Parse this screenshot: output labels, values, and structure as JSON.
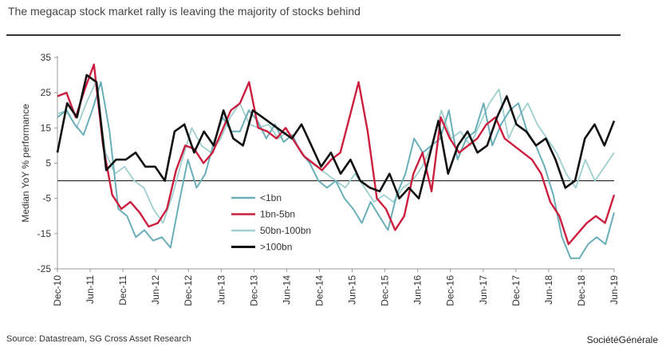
{
  "title": "The megacap stock market rally is leaving the majority of stocks behind",
  "source": "Source: Datastream, SG Cross Asset Research",
  "brand": "SociétéGénérale",
  "colors": {
    "lt1": "#6aaeb8",
    "r15": "#cc1f3f",
    "m50": "#9fcfcf",
    "g100": "#111111"
  },
  "chart_data": {
    "type": "line",
    "title": "The megacap stock market rally is leaving the majority of stocks behind",
    "ylabel": "Median YoY % performance",
    "xlabel": "",
    "ylim": [
      -25,
      35
    ],
    "yticks": [
      35,
      25,
      15,
      5,
      -5,
      -15,
      -25
    ],
    "xticks": [
      "Dec-10",
      "Jun-11",
      "Dec-11",
      "Jun-12",
      "Dec-12",
      "Jun-13",
      "Dec-13",
      "Jun-14",
      "Dec-14",
      "Jun-15",
      "Dec-15",
      "Jun-16",
      "Dec-16",
      "Jun-17",
      "Dec-17",
      "Jun-18",
      "Dec-18",
      "Jun-19"
    ],
    "legend_position": "center-left",
    "series": [
      {
        "name": "<1bn",
        "color_key": "lt1",
        "values": [
          18,
          20,
          16,
          13,
          20,
          28,
          14,
          -8,
          -10,
          -16,
          -14,
          -17,
          -16,
          -19,
          -6,
          6,
          -2,
          2,
          11,
          18,
          14,
          14,
          20,
          17,
          12,
          16,
          11,
          13,
          8,
          5,
          0,
          -2,
          0,
          -5,
          -8,
          -12,
          -6,
          -10,
          -14,
          -4,
          2,
          12,
          8,
          10,
          12,
          20,
          6,
          12,
          14,
          22,
          10,
          16,
          20,
          22,
          14,
          10,
          4,
          -4,
          -16,
          -22,
          -22,
          -18,
          -16,
          -18,
          -9
        ]
      },
      {
        "name": "1bn-5bn",
        "color_key": "r15",
        "values": [
          24,
          25,
          18,
          26,
          33,
          10,
          -4,
          -8,
          -6,
          -9,
          -13,
          -12,
          -8,
          3,
          10,
          9,
          5,
          8,
          14,
          20,
          22,
          28,
          15,
          14,
          12,
          15,
          11,
          7,
          5,
          3,
          6,
          8,
          18,
          28,
          14,
          -5,
          -8,
          -14,
          -10,
          2,
          8,
          -3,
          18,
          12,
          8,
          10,
          12,
          16,
          18,
          12,
          10,
          8,
          6,
          2,
          -6,
          -10,
          -18,
          -15,
          -12,
          -10,
          -12,
          -4
        ]
      },
      {
        "name": "50bn-100bn",
        "color_key": "m50",
        "values": [
          19,
          20,
          15,
          22,
          28,
          8,
          2,
          4,
          0,
          -2,
          -8,
          -12,
          -4,
          6,
          15,
          10,
          8,
          12,
          18,
          22,
          16,
          15,
          16,
          12,
          14,
          10,
          6,
          4,
          2,
          0,
          -2,
          2,
          -2,
          -6,
          -4,
          -6,
          -2,
          0,
          4,
          10,
          20,
          12,
          14,
          10,
          16,
          22,
          26,
          12,
          18,
          22,
          16,
          12,
          8,
          2,
          -2,
          6,
          0,
          4,
          8
        ]
      },
      {
        "name": ">100bn",
        "color_key": "g100",
        "values": [
          8,
          22,
          18,
          30,
          28,
          3,
          6,
          6,
          8,
          4,
          4,
          0,
          14,
          16,
          8,
          14,
          10,
          20,
          12,
          10,
          20,
          18,
          16,
          14,
          12,
          16,
          10,
          4,
          8,
          2,
          6,
          0,
          -2,
          -3,
          2,
          -5,
          -2,
          -5,
          6,
          17,
          2,
          10,
          14,
          8,
          10,
          18,
          24,
          16,
          14,
          10,
          12,
          6,
          -2,
          0,
          12,
          16,
          10,
          17
        ]
      }
    ]
  }
}
